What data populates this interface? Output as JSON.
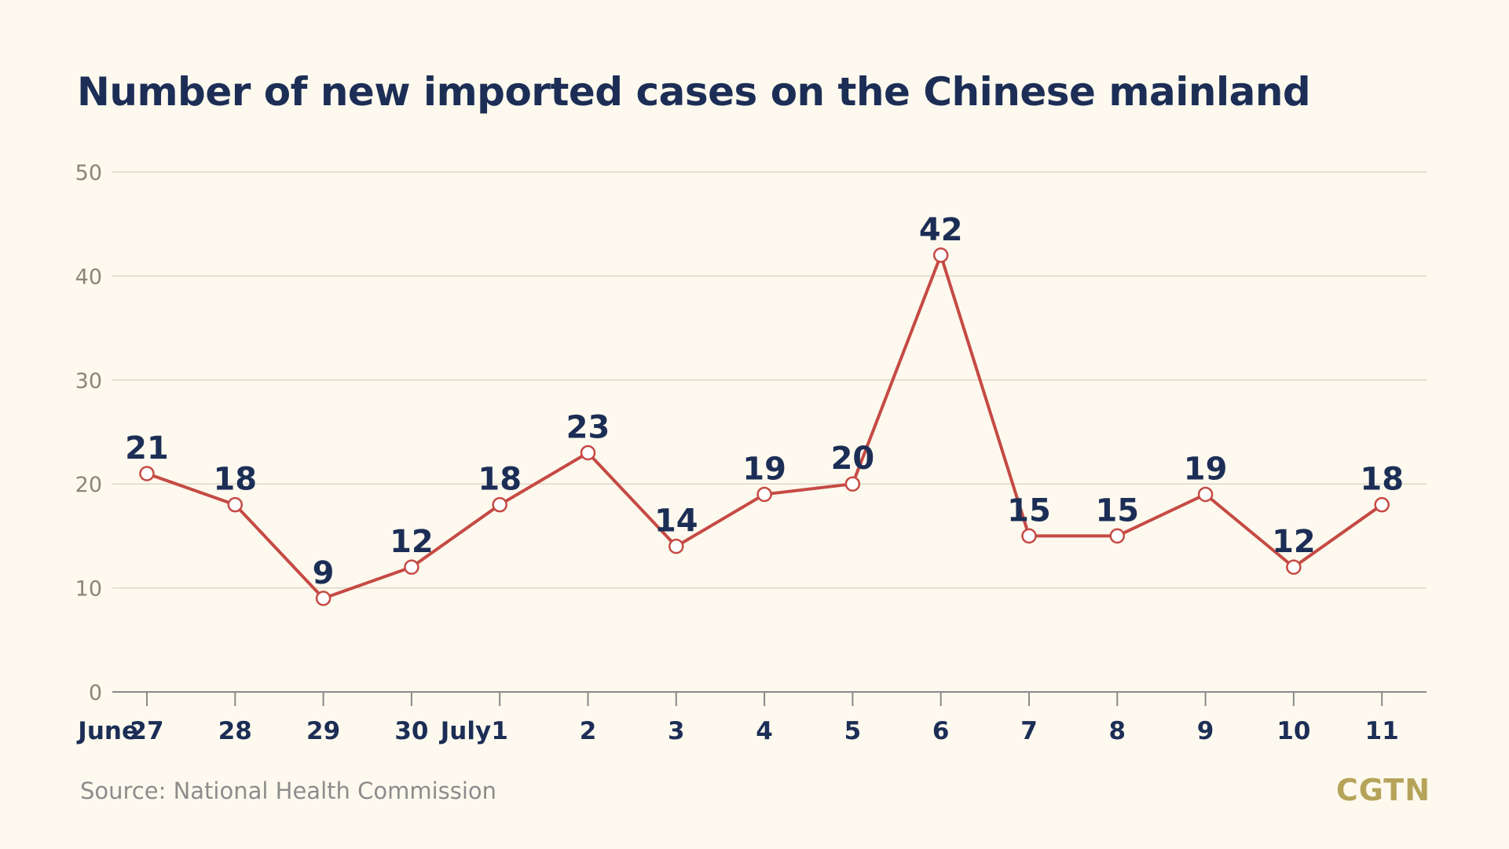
{
  "title": "Number of new imported cases on the Chinese mainland",
  "source": "Source: National Health Commission",
  "brand": "CGTN",
  "colors": {
    "background": "#fdf9ee",
    "line": "#c64a44",
    "title": "#1c2e56",
    "grid": "#ddd8c8",
    "axis": "#8a8575",
    "brand": "#b5a35a"
  },
  "chart_data": {
    "type": "line",
    "title": "Number of new imported cases on the Chinese mainland",
    "xlabel": "",
    "ylabel": "",
    "ylim": [
      0,
      50
    ],
    "yticks": [
      0,
      10,
      20,
      30,
      40,
      50
    ],
    "grid": true,
    "categories": [
      "June 27",
      "28",
      "29",
      "30",
      "July 1",
      "2",
      "3",
      "4",
      "5",
      "6",
      "7",
      "8",
      "9",
      "10",
      "11"
    ],
    "series": [
      {
        "values": [
          21,
          18,
          9,
          12,
          18,
          23,
          14,
          19,
          20,
          42,
          15,
          15,
          19,
          12,
          18
        ]
      }
    ]
  }
}
